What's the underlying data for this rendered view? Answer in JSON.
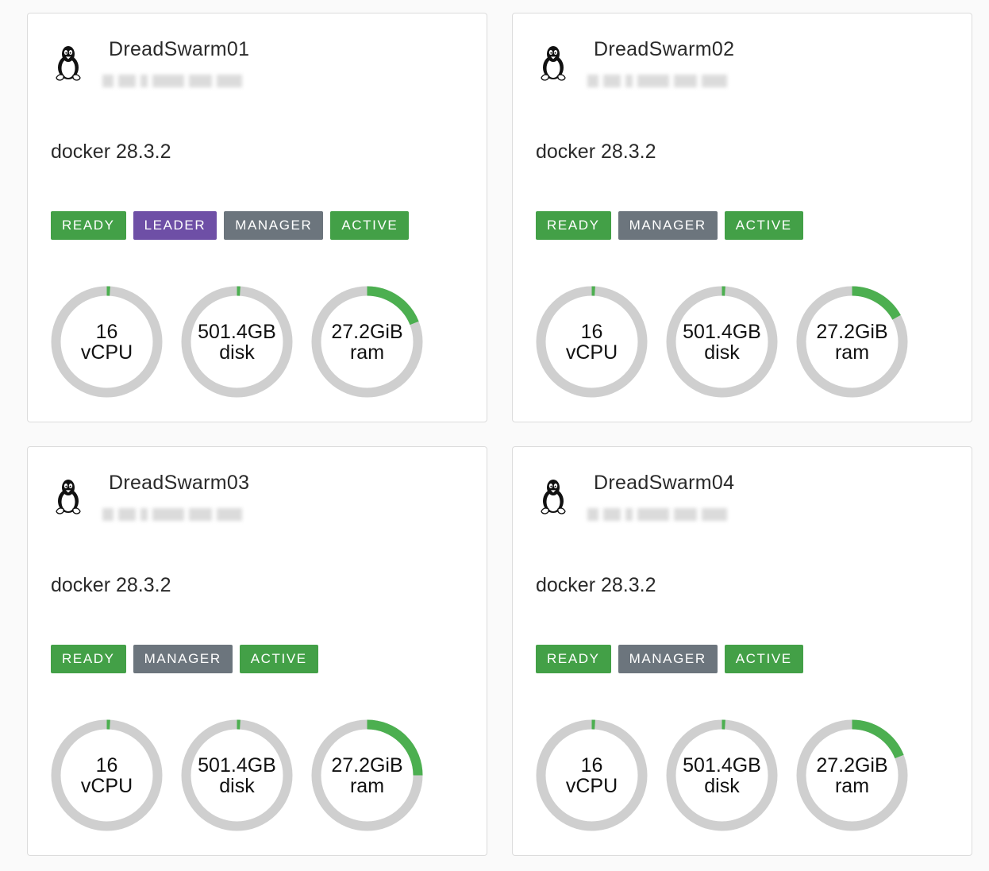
{
  "colors": {
    "ready": "#43a047",
    "leader": "#6e4fa6",
    "manager": "#6c757d",
    "active": "#43a047",
    "gauge_track": "#cfcfcf",
    "gauge_fill": "#4caf50"
  },
  "nodes": [
    {
      "hostname": "DreadSwarm01",
      "os_icon": "linux-tux-icon",
      "engine": "docker 28.3.2",
      "badges": [
        {
          "label": "READY",
          "kind": "ready"
        },
        {
          "label": "LEADER",
          "kind": "leader"
        },
        {
          "label": "MANAGER",
          "kind": "manager"
        },
        {
          "label": "ACTIVE",
          "kind": "active"
        }
      ],
      "resources": [
        {
          "value": "16",
          "unit": "vCPU",
          "usage": 0.01
        },
        {
          "value": "501.4GB",
          "unit": "disk",
          "usage": 0.01
        },
        {
          "value": "27.2GiB",
          "unit": "ram",
          "usage": 0.19
        }
      ]
    },
    {
      "hostname": "DreadSwarm02",
      "os_icon": "linux-tux-icon",
      "engine": "docker 28.3.2",
      "badges": [
        {
          "label": "READY",
          "kind": "ready"
        },
        {
          "label": "MANAGER",
          "kind": "manager"
        },
        {
          "label": "ACTIVE",
          "kind": "active"
        }
      ],
      "resources": [
        {
          "value": "16",
          "unit": "vCPU",
          "usage": 0.01
        },
        {
          "value": "501.4GB",
          "unit": "disk",
          "usage": 0.01
        },
        {
          "value": "27.2GiB",
          "unit": "ram",
          "usage": 0.17
        }
      ]
    },
    {
      "hostname": "DreadSwarm03",
      "os_icon": "linux-tux-icon",
      "engine": "docker 28.3.2",
      "badges": [
        {
          "label": "READY",
          "kind": "ready"
        },
        {
          "label": "MANAGER",
          "kind": "manager"
        },
        {
          "label": "ACTIVE",
          "kind": "active"
        }
      ],
      "resources": [
        {
          "value": "16",
          "unit": "vCPU",
          "usage": 0.01
        },
        {
          "value": "501.4GB",
          "unit": "disk",
          "usage": 0.01
        },
        {
          "value": "27.2GiB",
          "unit": "ram",
          "usage": 0.25
        }
      ]
    },
    {
      "hostname": "DreadSwarm04",
      "os_icon": "linux-tux-icon",
      "engine": "docker 28.3.2",
      "badges": [
        {
          "label": "READY",
          "kind": "ready"
        },
        {
          "label": "MANAGER",
          "kind": "manager"
        },
        {
          "label": "ACTIVE",
          "kind": "active"
        }
      ],
      "resources": [
        {
          "value": "16",
          "unit": "vCPU",
          "usage": 0.01
        },
        {
          "value": "501.4GB",
          "unit": "disk",
          "usage": 0.01
        },
        {
          "value": "27.2GiB",
          "unit": "ram",
          "usage": 0.19
        }
      ]
    }
  ]
}
